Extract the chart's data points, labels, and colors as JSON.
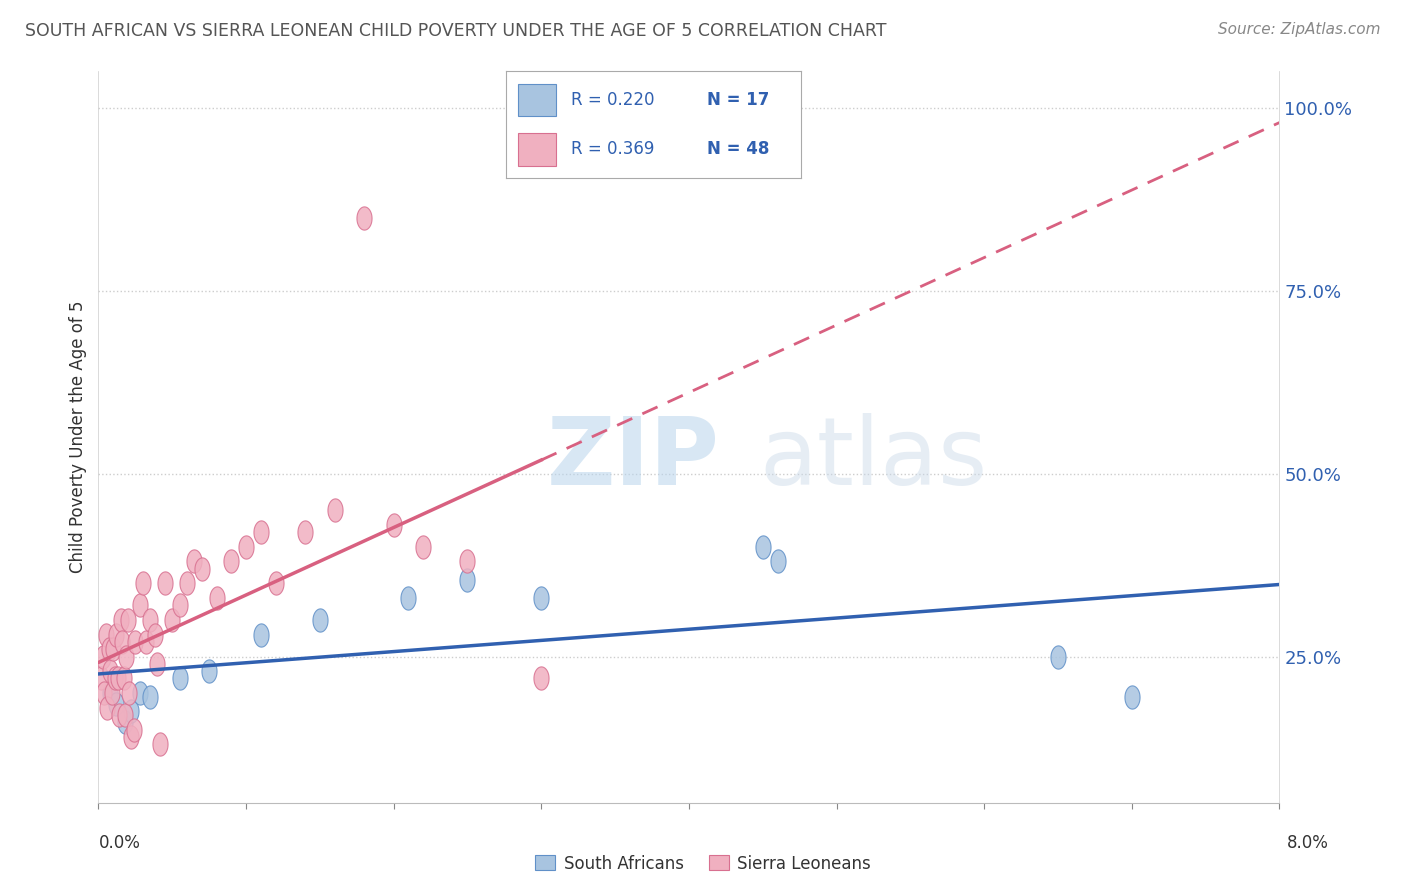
{
  "title": "SOUTH AFRICAN VS SIERRA LEONEAN CHILD POVERTY UNDER THE AGE OF 5 CORRELATION CHART",
  "source": "Source: ZipAtlas.com",
  "ylabel": "Child Poverty Under the Age of 5",
  "xlim": [
    0.0,
    8.0
  ],
  "ylim": [
    5.0,
    105.0
  ],
  "ytick_vals": [
    25,
    50,
    75,
    100
  ],
  "ytick_labels": [
    "25.0%",
    "50.0%",
    "75.0%",
    "100.0%"
  ],
  "background_color": "#ffffff",
  "grid_color": "#c8c8c8",
  "sa_fill": "#a8c4e0",
  "sa_edge": "#6090c8",
  "sl_fill": "#f0b0c0",
  "sl_edge": "#d87090",
  "trend_sa_color": "#3060b0",
  "trend_sl_color": "#d86080",
  "south_africans": [
    [
      0.08,
      20.0
    ],
    [
      0.12,
      18.5
    ],
    [
      0.18,
      16.0
    ],
    [
      0.22,
      17.5
    ],
    [
      0.28,
      20.0
    ],
    [
      0.35,
      19.5
    ],
    [
      0.55,
      22.0
    ],
    [
      0.75,
      23.0
    ],
    [
      1.1,
      28.0
    ],
    [
      1.5,
      30.0
    ],
    [
      2.1,
      33.0
    ],
    [
      2.5,
      35.5
    ],
    [
      3.0,
      33.0
    ],
    [
      4.5,
      40.0
    ],
    [
      4.6,
      38.0
    ],
    [
      6.5,
      25.0
    ],
    [
      7.0,
      19.5
    ]
  ],
  "sierra_leoneans": [
    [
      0.02,
      22.0
    ],
    [
      0.03,
      25.0
    ],
    [
      0.04,
      20.0
    ],
    [
      0.05,
      28.0
    ],
    [
      0.06,
      18.0
    ],
    [
      0.07,
      26.0
    ],
    [
      0.08,
      23.0
    ],
    [
      0.09,
      20.0
    ],
    [
      0.1,
      26.0
    ],
    [
      0.11,
      22.0
    ],
    [
      0.12,
      28.0
    ],
    [
      0.13,
      22.0
    ],
    [
      0.14,
      17.0
    ],
    [
      0.15,
      30.0
    ],
    [
      0.16,
      27.0
    ],
    [
      0.17,
      22.0
    ],
    [
      0.18,
      17.0
    ],
    [
      0.19,
      25.0
    ],
    [
      0.2,
      30.0
    ],
    [
      0.21,
      20.0
    ],
    [
      0.22,
      14.0
    ],
    [
      0.24,
      15.0
    ],
    [
      0.25,
      27.0
    ],
    [
      0.28,
      32.0
    ],
    [
      0.3,
      35.0
    ],
    [
      0.32,
      27.0
    ],
    [
      0.35,
      30.0
    ],
    [
      0.38,
      28.0
    ],
    [
      0.4,
      24.0
    ],
    [
      0.42,
      13.0
    ],
    [
      0.45,
      35.0
    ],
    [
      0.5,
      30.0
    ],
    [
      0.55,
      32.0
    ],
    [
      0.6,
      35.0
    ],
    [
      0.65,
      38.0
    ],
    [
      0.7,
      37.0
    ],
    [
      0.8,
      33.0
    ],
    [
      0.9,
      38.0
    ],
    [
      1.0,
      40.0
    ],
    [
      1.1,
      42.0
    ],
    [
      1.2,
      35.0
    ],
    [
      1.4,
      42.0
    ],
    [
      1.6,
      45.0
    ],
    [
      1.8,
      85.0
    ],
    [
      2.0,
      43.0
    ],
    [
      2.2,
      40.0
    ],
    [
      2.5,
      38.0
    ],
    [
      3.0,
      22.0
    ]
  ],
  "watermark_zip": "ZIP",
  "watermark_atlas": "atlas",
  "legend_r1": "R = 0.220",
  "legend_n1": "N = 17",
  "legend_r2": "R = 0.369",
  "legend_n2": "N = 48",
  "bottom_label_sa": "South Africans",
  "bottom_label_sl": "Sierra Leoneans"
}
